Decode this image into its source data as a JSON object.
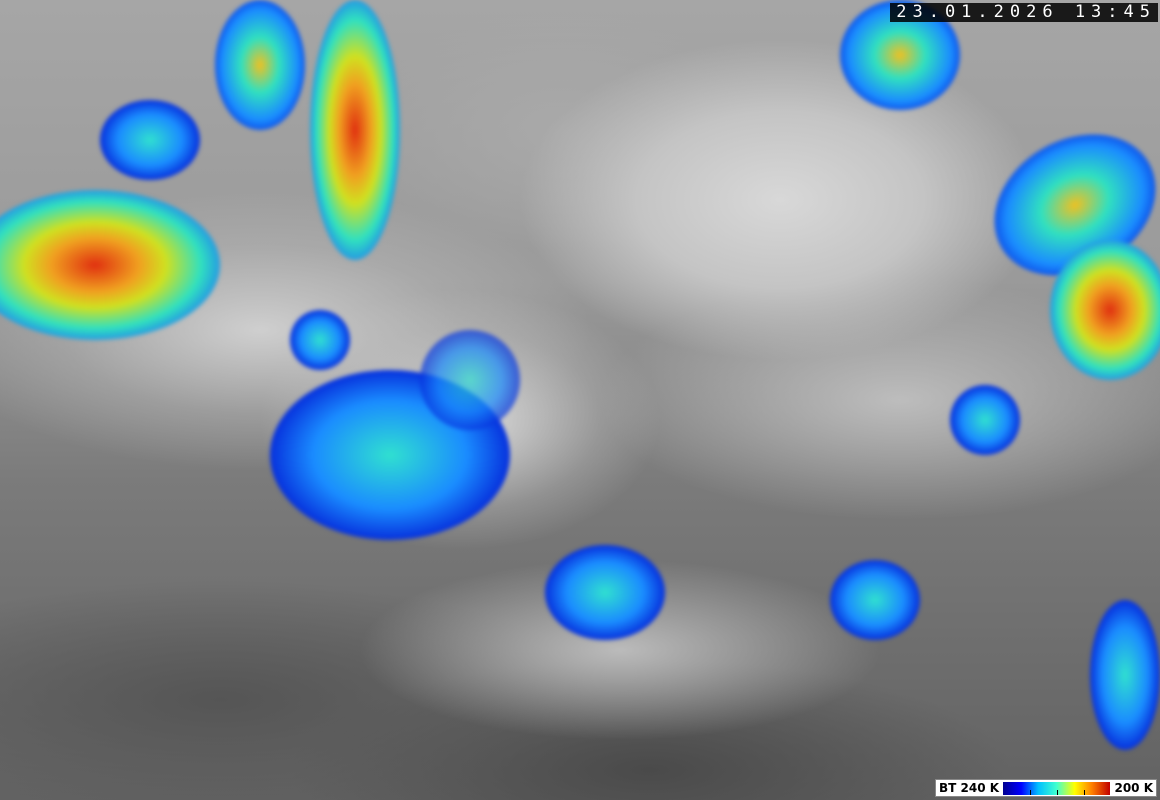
{
  "timestamp": "23.01.2026 13:45",
  "legend": {
    "label_left": "BT 240 K",
    "label_right": "200 K",
    "colors": [
      "#000090",
      "#0000ff",
      "#00c0ff",
      "#40ffd0",
      "#ffff00",
      "#ff8000",
      "#c00000"
    ]
  }
}
